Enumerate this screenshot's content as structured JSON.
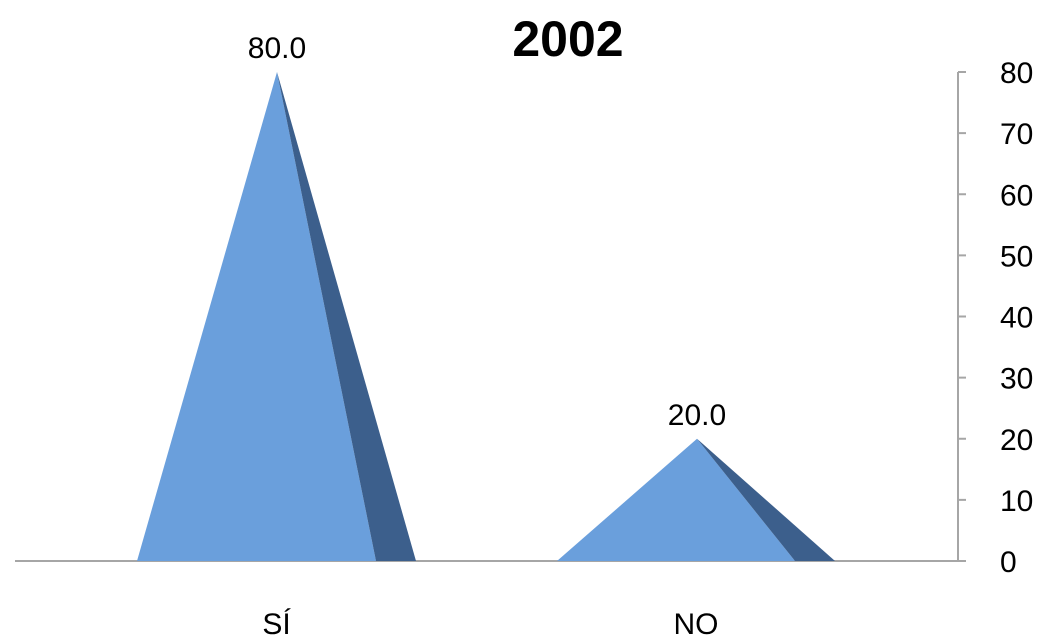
{
  "chart_data": {
    "type": "bar",
    "title": "2002",
    "categories": [
      "SÍ",
      "NO"
    ],
    "values": [
      80.0,
      20.0
    ],
    "value_labels": [
      "80.0",
      "20.0"
    ],
    "ylim": [
      0,
      80
    ],
    "yticks": [
      "0",
      "10",
      "20",
      "30",
      "40",
      "50",
      "60",
      "70",
      "80"
    ],
    "y_axis_side": "right",
    "bar_shape": "3d-pyramid",
    "grid": false,
    "legend": false,
    "colors": {
      "face": "#6a9fdc",
      "side": "#3c5f8c",
      "axis": "#a6a6a6"
    }
  }
}
